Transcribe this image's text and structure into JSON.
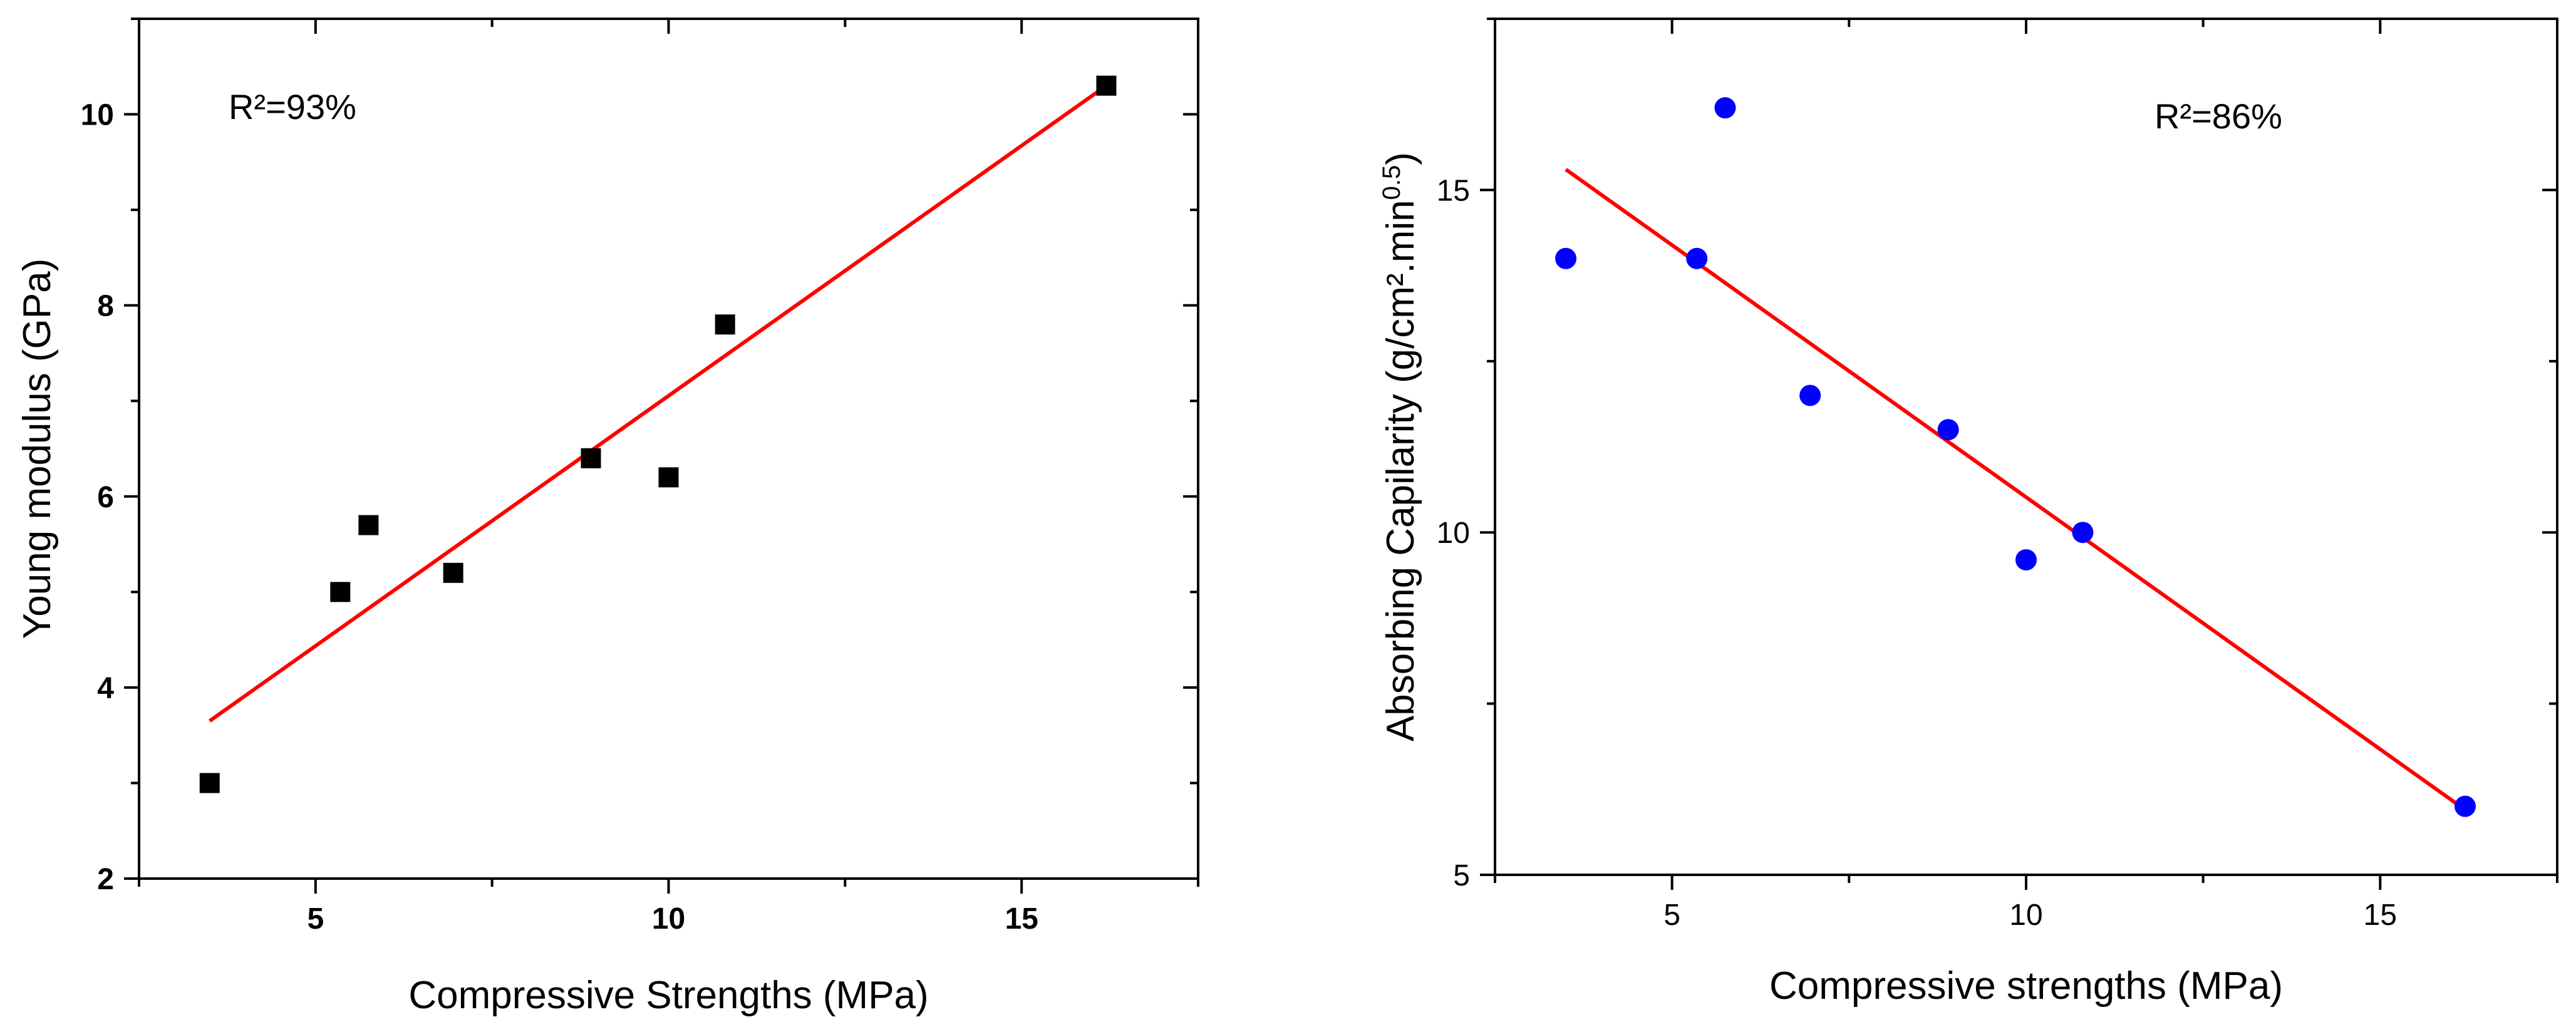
{
  "chart_data": [
    {
      "type": "scatter",
      "xlabel": "Compressive Strengths (MPa)",
      "ylabel": "Young modulus (GPa)",
      "annotation": "R²=93%",
      "xlim": [
        2.5,
        17.5
      ],
      "ylim": [
        2,
        11
      ],
      "xticks": [
        5,
        10,
        15
      ],
      "yticks": [
        2,
        4,
        6,
        8,
        10
      ],
      "xtick_labels": [
        "5",
        "10",
        "15"
      ],
      "ytick_labels": [
        "2",
        "4",
        "6",
        "8",
        "10"
      ],
      "tick_bold": true,
      "marker": "square",
      "marker_color": "#000000",
      "fit_color": "#ff0000",
      "points": [
        {
          "x": 3.5,
          "y": 3.0
        },
        {
          "x": 5.35,
          "y": 5.0
        },
        {
          "x": 5.75,
          "y": 5.7
        },
        {
          "x": 6.95,
          "y": 5.2
        },
        {
          "x": 8.9,
          "y": 6.4
        },
        {
          "x": 10.0,
          "y": 6.2
        },
        {
          "x": 10.8,
          "y": 7.8
        },
        {
          "x": 16.2,
          "y": 10.3
        }
      ],
      "fit_line": {
        "x": [
          3.5,
          16.2
        ],
        "y": [
          3.65,
          10.3
        ]
      }
    },
    {
      "type": "scatter",
      "xlabel": "Compressive strengths (MPa)",
      "ylabel_main": "Absorbing Capilarity (g/cm².min",
      "ylabel_sup": "0.5",
      "ylabel_end": ")",
      "annotation": "R²=86%",
      "xlim": [
        2.5,
        17.5
      ],
      "ylim": [
        5,
        17.5
      ],
      "xticks": [
        5,
        10,
        15
      ],
      "yticks": [
        5,
        10,
        15
      ],
      "xtick_labels": [
        "5",
        "10",
        "15"
      ],
      "ytick_labels": [
        "5",
        "10",
        "15"
      ],
      "tick_bold": false,
      "marker": "circle",
      "marker_color": "#0000ff",
      "fit_color": "#ff0000",
      "points": [
        {
          "x": 3.5,
          "y": 14.0
        },
        {
          "x": 5.35,
          "y": 14.0
        },
        {
          "x": 5.75,
          "y": 16.2
        },
        {
          "x": 6.95,
          "y": 12.0
        },
        {
          "x": 8.9,
          "y": 11.5
        },
        {
          "x": 10.0,
          "y": 9.6
        },
        {
          "x": 10.8,
          "y": 10.0
        },
        {
          "x": 16.2,
          "y": 6.0
        }
      ],
      "fit_line": {
        "x": [
          3.5,
          16.2
        ],
        "y": [
          15.3,
          5.95
        ]
      }
    }
  ]
}
